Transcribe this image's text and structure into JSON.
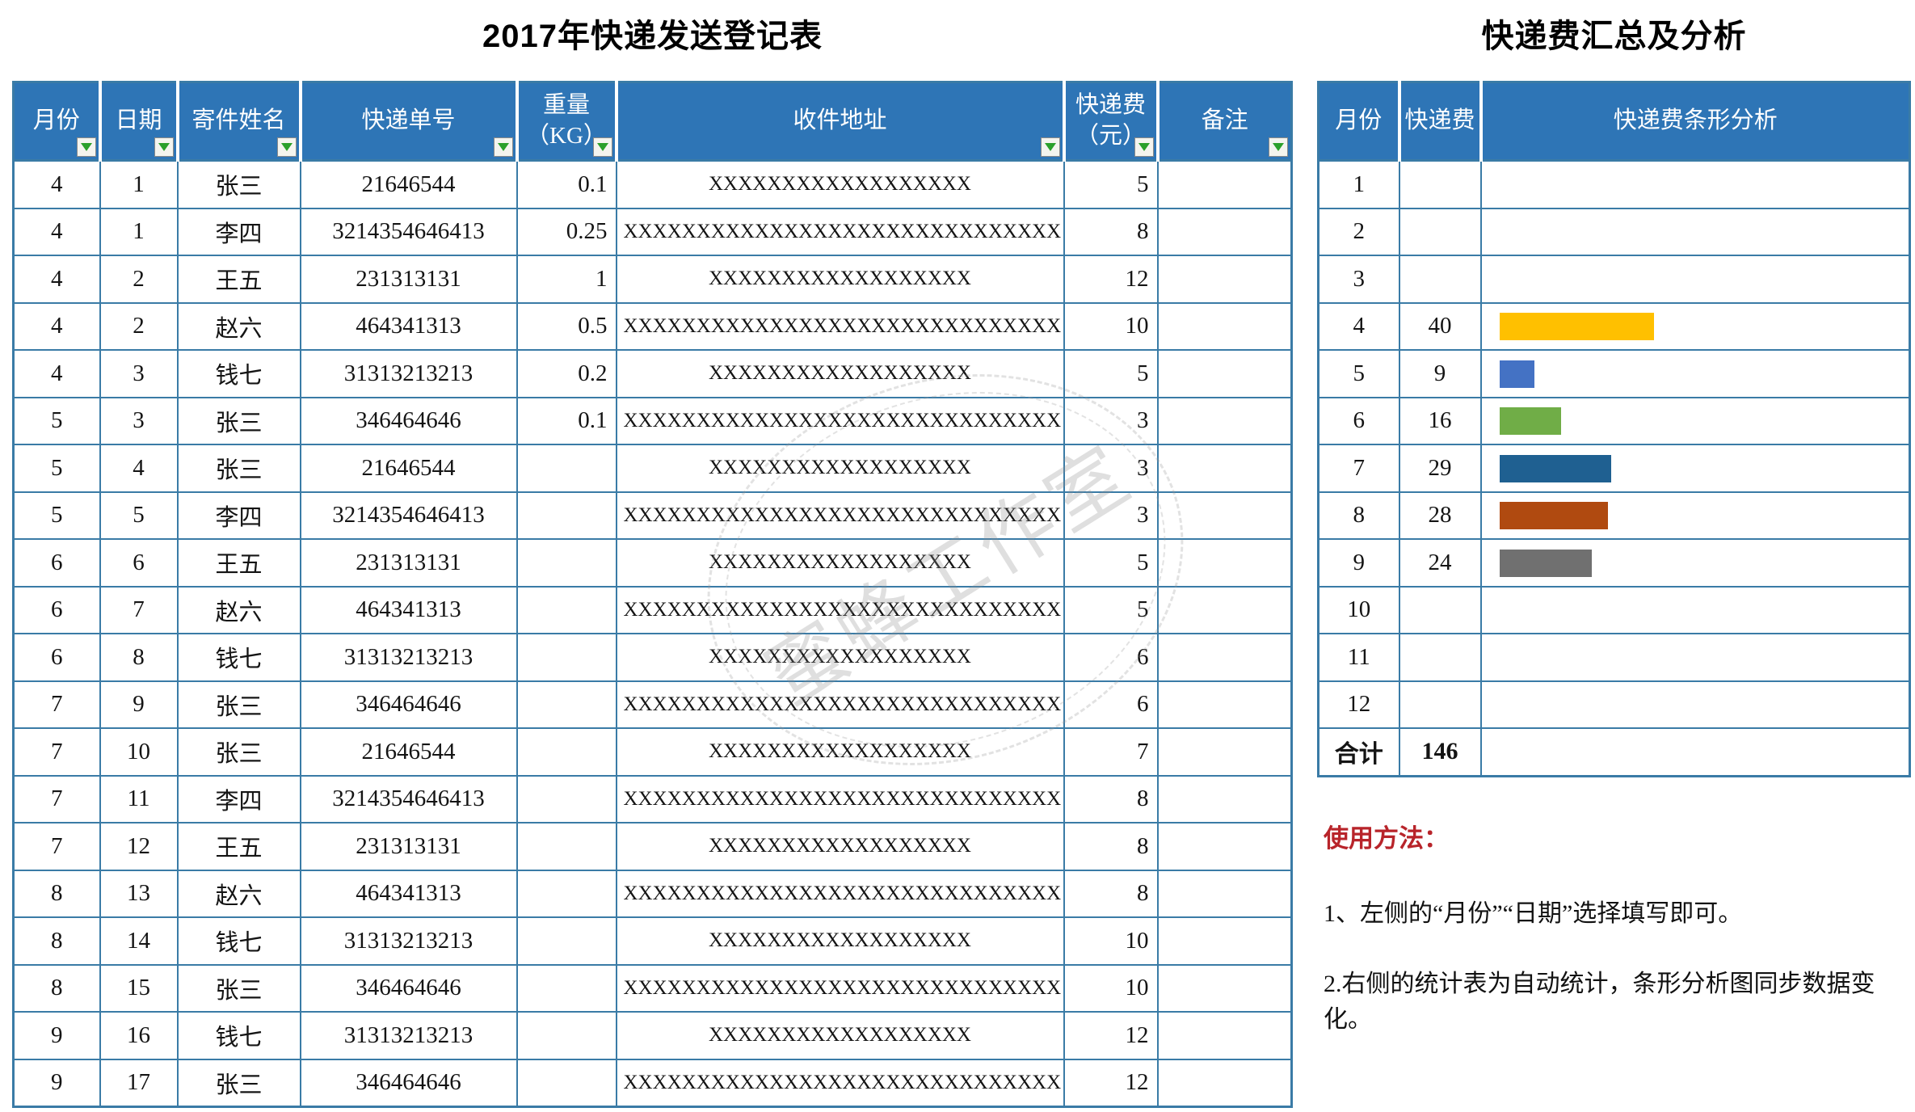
{
  "colors": {
    "header_bg": "#2E75B6",
    "grid_border": "#3A7BA6",
    "filter_arrow_green": "#2BA02B",
    "instructions_red": "#B8242A",
    "bar_yellow": "#FFC000",
    "bar_blue": "#4472C4",
    "bar_green": "#70AD47",
    "bar_dark_blue": "#1F6091",
    "bar_brown": "#B04A10",
    "bar_gray": "#707070"
  },
  "left_table": {
    "title": "2017年快递发送登记表",
    "headers": [
      "月份",
      "日期",
      "寄件姓名",
      "快递单号",
      "重量\n（KG）",
      "收件地址",
      "快递费\n（元）",
      "备注"
    ],
    "rows": [
      [
        "4",
        "1",
        "张三",
        "21646544",
        "0.1",
        "XXXXXXXXXXXXXXXXXX",
        "5",
        ""
      ],
      [
        "4",
        "1",
        "李四",
        "3214354646413",
        "0.25",
        "XXXXXXXXXXXXXXXXXXXXXXXXXXXXXX",
        "8",
        ""
      ],
      [
        "4",
        "2",
        "王五",
        "231313131",
        "1",
        "XXXXXXXXXXXXXXXXXX",
        "12",
        ""
      ],
      [
        "4",
        "2",
        "赵六",
        "464341313",
        "0.5",
        "XXXXXXXXXXXXXXXXXXXXXXXXXXXXXX",
        "10",
        ""
      ],
      [
        "4",
        "3",
        "钱七",
        "31313213213",
        "0.2",
        "XXXXXXXXXXXXXXXXXX",
        "5",
        ""
      ],
      [
        "5",
        "3",
        "张三",
        "346464646",
        "0.1",
        "XXXXXXXXXXXXXXXXXXXXXXXXXXXXXX",
        "3",
        ""
      ],
      [
        "5",
        "4",
        "张三",
        "21646544",
        "",
        "XXXXXXXXXXXXXXXXXX",
        "3",
        ""
      ],
      [
        "5",
        "5",
        "李四",
        "3214354646413",
        "",
        "XXXXXXXXXXXXXXXXXXXXXXXXXXXXXX",
        "3",
        ""
      ],
      [
        "6",
        "6",
        "王五",
        "231313131",
        "",
        "XXXXXXXXXXXXXXXXXX",
        "5",
        ""
      ],
      [
        "6",
        "7",
        "赵六",
        "464341313",
        "",
        "XXXXXXXXXXXXXXXXXXXXXXXXXXXXXX",
        "5",
        ""
      ],
      [
        "6",
        "8",
        "钱七",
        "31313213213",
        "",
        "XXXXXXXXXXXXXXXXXX",
        "6",
        ""
      ],
      [
        "7",
        "9",
        "张三",
        "346464646",
        "",
        "XXXXXXXXXXXXXXXXXXXXXXXXXXXXXX",
        "6",
        ""
      ],
      [
        "7",
        "10",
        "张三",
        "21646544",
        "",
        "XXXXXXXXXXXXXXXXXX",
        "7",
        ""
      ],
      [
        "7",
        "11",
        "李四",
        "3214354646413",
        "",
        "XXXXXXXXXXXXXXXXXXXXXXXXXXXXXX",
        "8",
        ""
      ],
      [
        "7",
        "12",
        "王五",
        "231313131",
        "",
        "XXXXXXXXXXXXXXXXXX",
        "8",
        ""
      ],
      [
        "8",
        "13",
        "赵六",
        "464341313",
        "",
        "XXXXXXXXXXXXXXXXXXXXXXXXXXXXXX",
        "8",
        ""
      ],
      [
        "8",
        "14",
        "钱七",
        "31313213213",
        "",
        "XXXXXXXXXXXXXXXXXX",
        "10",
        ""
      ],
      [
        "8",
        "15",
        "张三",
        "346464646",
        "",
        "XXXXXXXXXXXXXXXXXXXXXXXXXXXXXX",
        "10",
        ""
      ],
      [
        "9",
        "16",
        "钱七",
        "31313213213",
        "",
        "XXXXXXXXXXXXXXXXXX",
        "12",
        ""
      ],
      [
        "9",
        "17",
        "张三",
        "346464646",
        "",
        "XXXXXXXXXXXXXXXXXXXXXXXXXXXXXX",
        "12",
        ""
      ]
    ]
  },
  "right_table": {
    "title": "快递费汇总及分析",
    "headers": [
      "月份",
      "快递费",
      "快递费条形分析"
    ],
    "rows": [
      {
        "month": "1",
        "fee": "",
        "bar": 0,
        "color": ""
      },
      {
        "month": "2",
        "fee": "",
        "bar": 0,
        "color": ""
      },
      {
        "month": "3",
        "fee": "",
        "bar": 0,
        "color": ""
      },
      {
        "month": "4",
        "fee": "40",
        "bar": 40,
        "color": "#FFC000"
      },
      {
        "month": "5",
        "fee": "9",
        "bar": 9,
        "color": "#4472C4"
      },
      {
        "month": "6",
        "fee": "16",
        "bar": 16,
        "color": "#70AD47"
      },
      {
        "month": "7",
        "fee": "29",
        "bar": 29,
        "color": "#1F6091"
      },
      {
        "month": "8",
        "fee": "28",
        "bar": 28,
        "color": "#B04A10"
      },
      {
        "month": "9",
        "fee": "24",
        "bar": 24,
        "color": "#707070"
      },
      {
        "month": "10",
        "fee": "",
        "bar": 0,
        "color": ""
      },
      {
        "month": "11",
        "fee": "",
        "bar": 0,
        "color": ""
      },
      {
        "month": "12",
        "fee": "",
        "bar": 0,
        "color": ""
      }
    ],
    "total": {
      "label": "合计",
      "fee": "146"
    }
  },
  "instructions": {
    "heading": "使用方法：",
    "items": [
      "1、左侧的“月份”“日期”选择填写即可。",
      "2.右侧的统计表为自动统计，条形分析图同步数据变化。"
    ]
  },
  "watermark": {
    "text": "蜜蜂工作室"
  },
  "chart_data": {
    "type": "bar",
    "orientation": "horizontal",
    "title": "快递费条形分析",
    "categories": [
      4,
      5,
      6,
      7,
      8,
      9
    ],
    "values": [
      40,
      9,
      16,
      29,
      28,
      24
    ],
    "colors": [
      "#FFC000",
      "#4472C4",
      "#70AD47",
      "#1F6091",
      "#B04A10",
      "#707070"
    ],
    "xlim": [
      0,
      40
    ],
    "total": 146
  }
}
